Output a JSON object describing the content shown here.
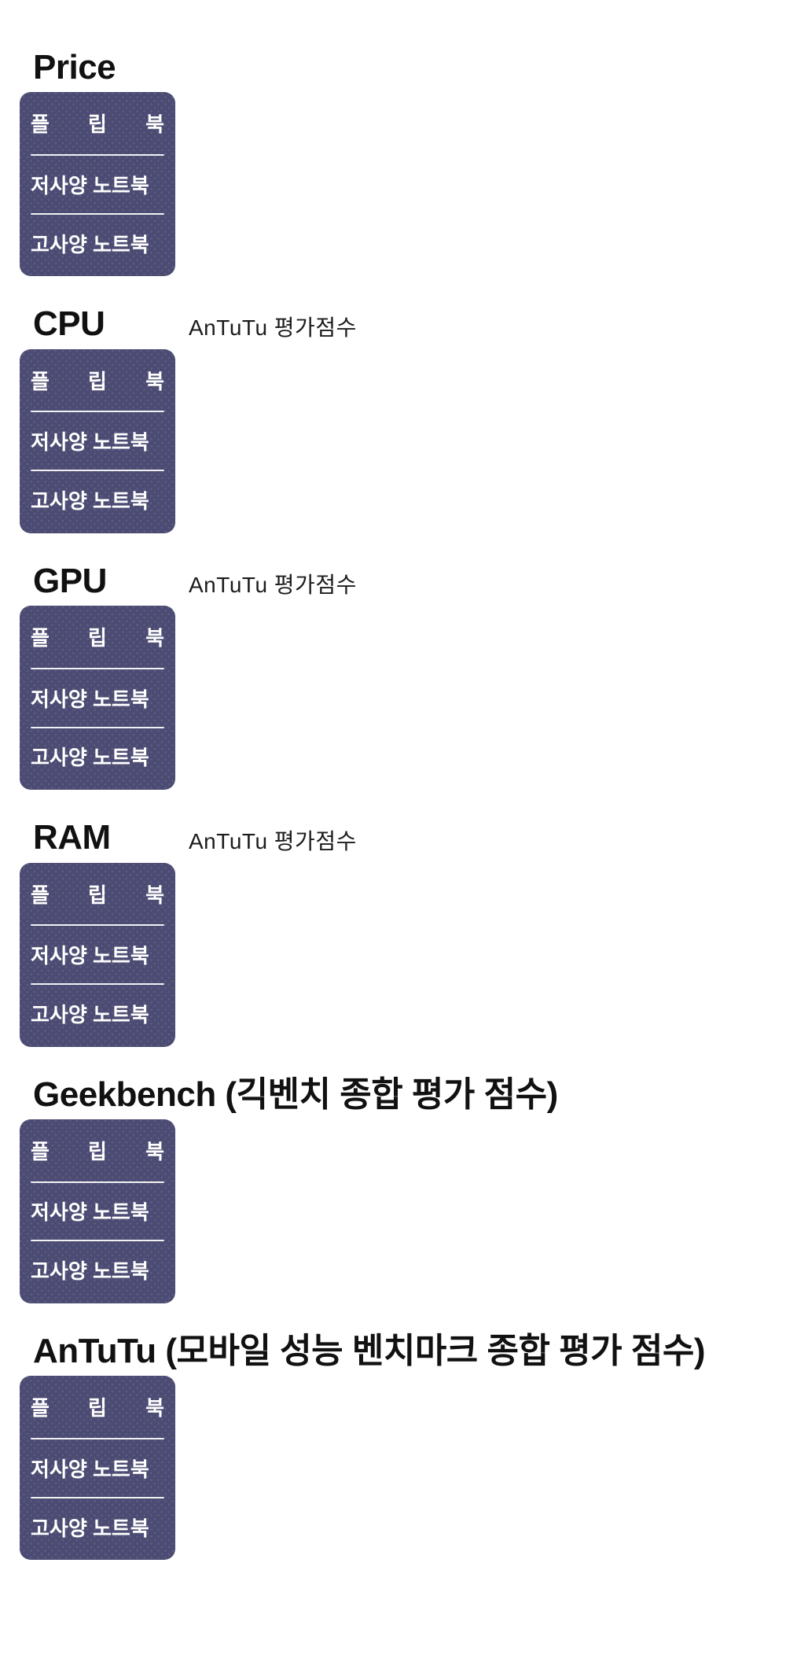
{
  "page": {
    "background": "#ffffff"
  },
  "colors": {
    "card_background": "#4b4b73",
    "card_dot_pattern": "#5d5d86",
    "card_text": "#ffffff",
    "card_divider": "#ffffff",
    "title_text": "#111111",
    "subtitle_text": "#1c1c1c"
  },
  "sections": [
    {
      "id": "price",
      "title": "Price",
      "rows": [
        "플 립 북",
        "저사양 노트북",
        "고사양 노트북"
      ]
    },
    {
      "id": "cpu",
      "title": "CPU",
      "subtitle": "AnTuTu 평가점수",
      "rows": [
        "플 립 북",
        "저사양 노트북",
        "고사양 노트북"
      ]
    },
    {
      "id": "gpu",
      "title": "GPU",
      "subtitle": "AnTuTu 평가점수",
      "rows": [
        "플 립 북",
        "저사양 노트북",
        "고사양 노트북"
      ]
    },
    {
      "id": "ram",
      "title": "RAM",
      "subtitle": "AnTuTu 평가점수",
      "rows": [
        "플 립 북",
        "저사양 노트북",
        "고사양 노트북"
      ]
    },
    {
      "id": "geekbench",
      "title": "Geekbench (긱벤치 종합 평가 점수)",
      "rows": [
        "플 립 북",
        "저사양 노트북",
        "고사양 노트북"
      ]
    },
    {
      "id": "antutu",
      "title": "AnTuTu (모바일 성능 벤치마크 종합 평가 점수)",
      "rows": [
        "플 립 북",
        "저사양 노트북",
        "고사양 노트북"
      ]
    }
  ]
}
